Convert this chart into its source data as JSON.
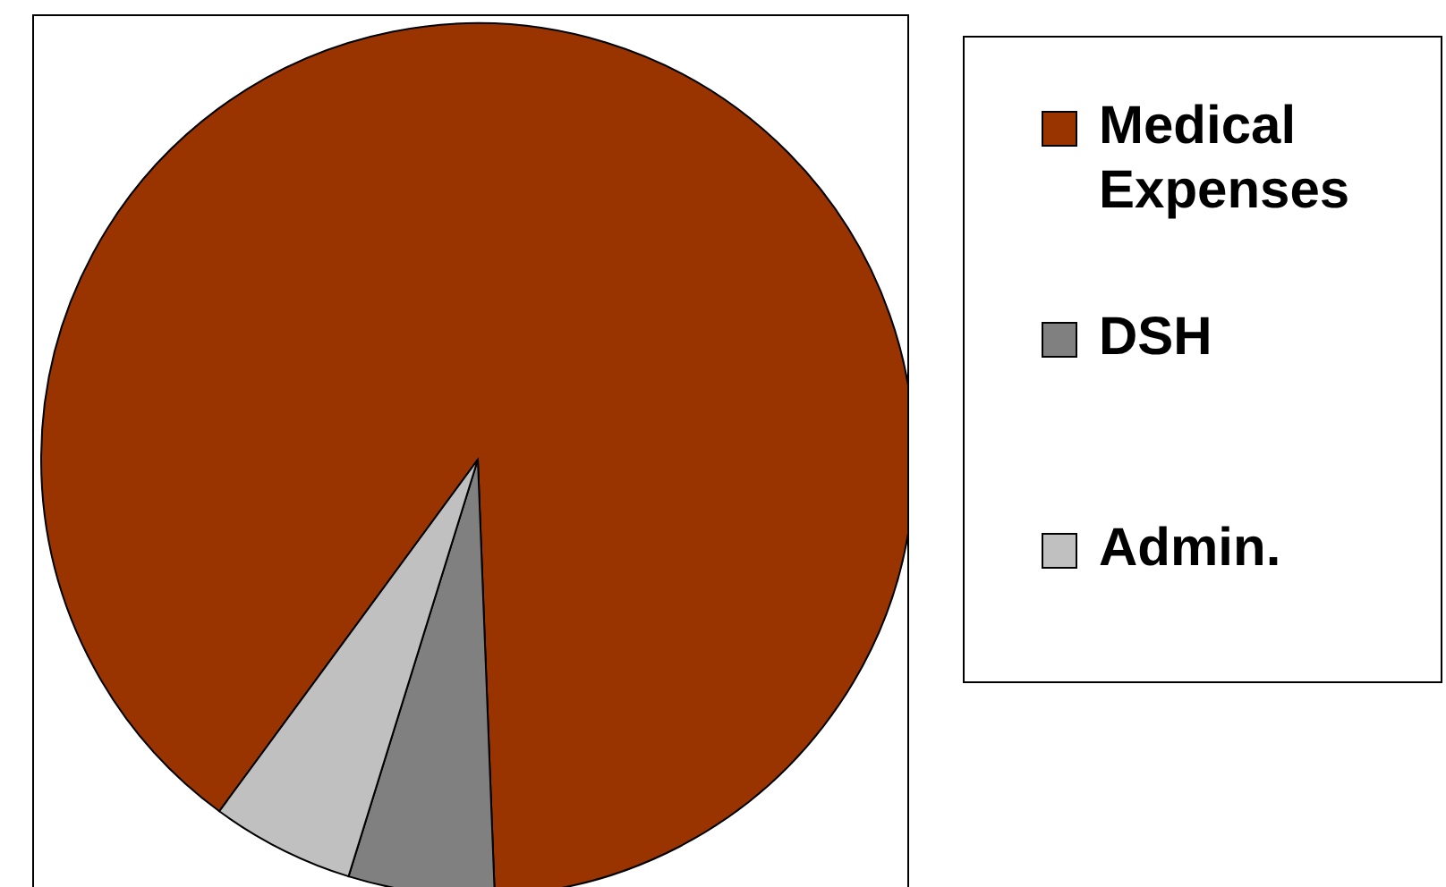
{
  "chart_data": {
    "type": "pie",
    "categories": [
      "Medical Expenses",
      "DSH",
      "Admin."
    ],
    "values": [
      89.3,
      5.4,
      5.3
    ],
    "colors": [
      "#993300",
      "#808080",
      "#c0c0c0"
    ],
    "legend": "right"
  }
}
